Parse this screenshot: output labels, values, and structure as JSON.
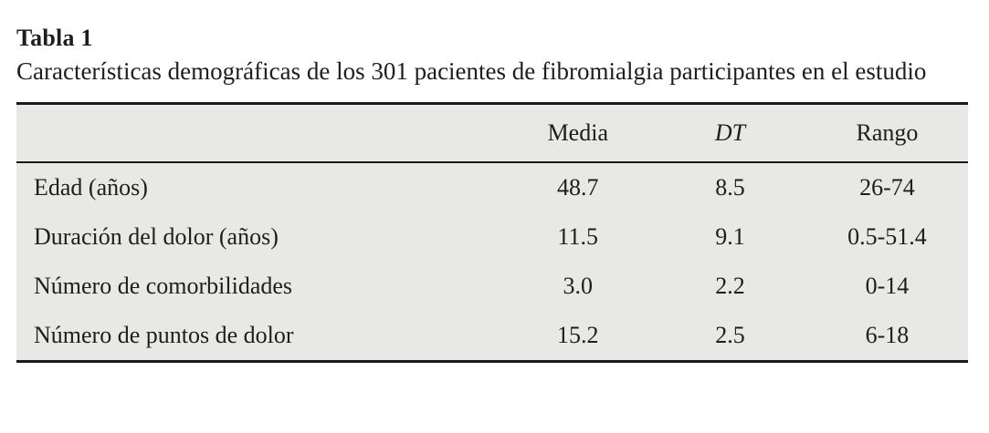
{
  "table": {
    "label": "Tabla 1",
    "caption": "Características demográficas de los 301 pacientes de fibromialgia participantes en el estudio",
    "columns": [
      "",
      "Media",
      "DT",
      "Rango"
    ],
    "rows": [
      {
        "label": "Edad (años)",
        "media": "48.7",
        "dt": "8.5",
        "rango": "26-74"
      },
      {
        "label": "Duración del dolor (años)",
        "media": "11.5",
        "dt": "9.1",
        "rango": "0.5-51.4"
      },
      {
        "label": "Número de comorbilidades",
        "media": "3.0",
        "dt": "2.2",
        "rango": "0-14"
      },
      {
        "label": "Número de puntos de dolor",
        "media": "15.2",
        "dt": "2.5",
        "rango": "6-18"
      }
    ]
  },
  "colors": {
    "table_background": "#e8e8e6",
    "rule": "#1a1a1a",
    "text": "#1e1e1e",
    "page_background": "#ffffff"
  }
}
